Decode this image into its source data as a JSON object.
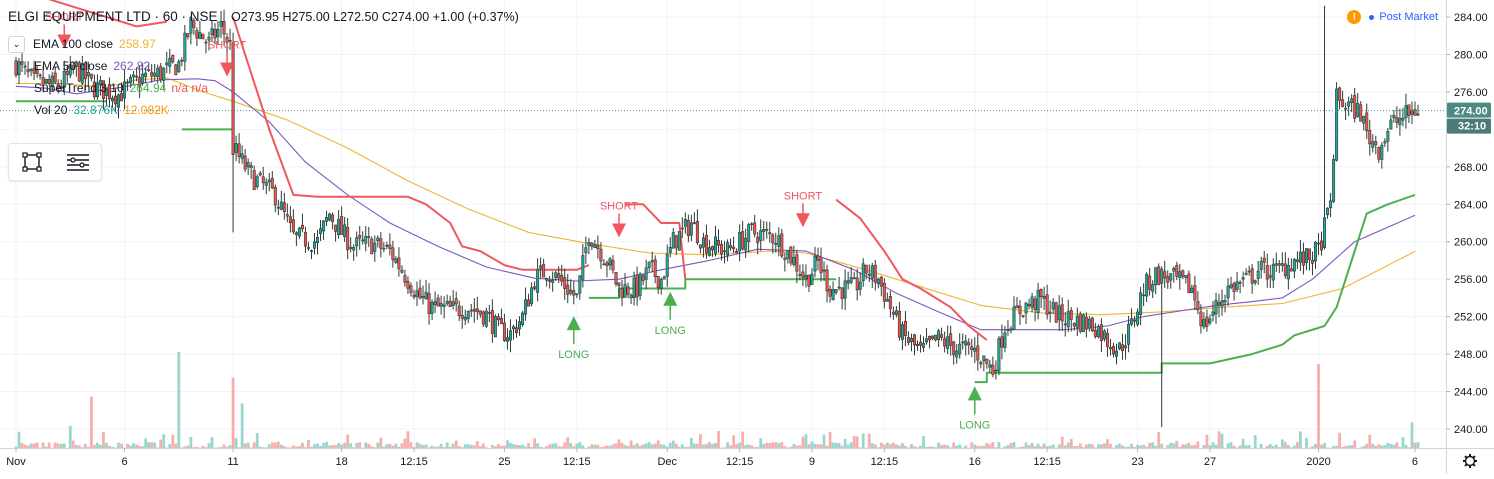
{
  "header": {
    "symbol": "ELGI EQUIPMENT LTD · 60 · NSE",
    "open": "O273.95",
    "high": "H275.00",
    "low": "L272.50",
    "close": "C274.00",
    "change": "+1.00 (+0.37%)"
  },
  "legend": [
    {
      "name": "EMA 100 close",
      "value": "258.97",
      "value2": "",
      "color": "#f0b430",
      "color2": ""
    },
    {
      "name": "EMA 50 close",
      "value": "262.82",
      "value2": "",
      "color": "#7e57c2",
      "color2": ""
    },
    {
      "name": "SuperTrend 3 10",
      "value": "264.94",
      "value2": "n/a n/a",
      "color": "#4caf50",
      "color2": "#ef5350"
    },
    {
      "name": "Vol 20",
      "value": "32.876K",
      "value2": "12.082K",
      "color": "#26a69a",
      "color2": "#ff9800"
    }
  ],
  "status": {
    "icon": "exclamation-icon",
    "text": "Post Market"
  },
  "tools": [
    "rectangle-select-icon",
    "list-lines-icon"
  ],
  "settings_icon": "gear-icon",
  "colors": {
    "up": "#26a69a",
    "down": "#ef5350",
    "body": "#2e3b34",
    "ema100": "#f0b430",
    "ema50": "#7e57c2",
    "st_up": "#4caf50",
    "st_down": "#f0585f",
    "price_line": "#4a8a8a",
    "price_tag": "#4d8a83",
    "timer_tag": "#4a7a7a"
  },
  "chart_data": {
    "type": "candlestick",
    "interval": "60",
    "ylim": [
      238.5,
      285.5
    ],
    "y_ticks": [
      240,
      244,
      248,
      252,
      256,
      260,
      264,
      268,
      272,
      276,
      280,
      284
    ],
    "y_tick_labels": [
      "240.00",
      "244.00",
      "248.00",
      "252.00",
      "256.00",
      "260.00",
      "264.00",
      "268.00",
      "272.00",
      "276.00",
      "280.00",
      "284.00"
    ],
    "x_tick_labels": [
      "Nov",
      "6",
      "11",
      "18",
      "12:15",
      "25",
      "12:15",
      "Dec",
      "12:15",
      "9",
      "12:15",
      "16",
      "12:15",
      "23",
      "27",
      "2020",
      "6"
    ],
    "x_tick_index": [
      0,
      36,
      72,
      108,
      132,
      162,
      186,
      216,
      240,
      264,
      288,
      318,
      342,
      372,
      396,
      432,
      464
    ],
    "last_price": "274.00",
    "countdown": "32:10",
    "price_path": [
      [
        0,
        279
      ],
      [
        6,
        277
      ],
      [
        14,
        276.6
      ],
      [
        20,
        278.5
      ],
      [
        26,
        276.5
      ],
      [
        34,
        275.7
      ],
      [
        42,
        277.6
      ],
      [
        48,
        278
      ],
      [
        54,
        279
      ],
      [
        58,
        283.2
      ],
      [
        64,
        281.2
      ],
      [
        68,
        283
      ],
      [
        71,
        281
      ],
      [
        72,
        270
      ],
      [
        78,
        267
      ],
      [
        86,
        265
      ],
      [
        92,
        260.5
      ],
      [
        100,
        260
      ],
      [
        104,
        263
      ],
      [
        108,
        261
      ],
      [
        112,
        259.5
      ],
      [
        118,
        259.8
      ],
      [
        124,
        259
      ],
      [
        128,
        257
      ],
      [
        134,
        254
      ],
      [
        138,
        253
      ],
      [
        145,
        252.7
      ],
      [
        150,
        253
      ],
      [
        156,
        252.2
      ],
      [
        160,
        250.5
      ],
      [
        164,
        250.2
      ],
      [
        168,
        252
      ],
      [
        172,
        256
      ],
      [
        176,
        257
      ],
      [
        180,
        256
      ],
      [
        186,
        254
      ],
      [
        190,
        261
      ],
      [
        196,
        258
      ],
      [
        200,
        255
      ],
      [
        206,
        255
      ],
      [
        210,
        257
      ],
      [
        214,
        256
      ],
      [
        218,
        260
      ],
      [
        224,
        262
      ],
      [
        228,
        260
      ],
      [
        236,
        259
      ],
      [
        244,
        261
      ],
      [
        252,
        260.5
      ],
      [
        258,
        258
      ],
      [
        262,
        256
      ],
      [
        266,
        257.8
      ],
      [
        270,
        255
      ],
      [
        278,
        255
      ],
      [
        282,
        257
      ],
      [
        286,
        256
      ],
      [
        290,
        253
      ],
      [
        294,
        250
      ],
      [
        300,
        248.2
      ],
      [
        306,
        249.6
      ],
      [
        312,
        248.6
      ],
      [
        318,
        248.4
      ],
      [
        324,
        246.3
      ],
      [
        328,
        251
      ],
      [
        334,
        253
      ],
      [
        340,
        253.8
      ],
      [
        346,
        252
      ],
      [
        352,
        251.6
      ],
      [
        358,
        251
      ],
      [
        362,
        249.5
      ],
      [
        366,
        248.5
      ],
      [
        370,
        251
      ],
      [
        374,
        255
      ],
      [
        378,
        256.5
      ],
      [
        384,
        256
      ],
      [
        390,
        255
      ],
      [
        394,
        251
      ],
      [
        398,
        253
      ],
      [
        402,
        255
      ],
      [
        408,
        255.8
      ],
      [
        412,
        257
      ],
      [
        418,
        256.8
      ],
      [
        424,
        258
      ],
      [
        428,
        258.1
      ],
      [
        432,
        259
      ],
      [
        436,
        264
      ],
      [
        438,
        275.2
      ],
      [
        442,
        274.5
      ],
      [
        446,
        273.8
      ],
      [
        448,
        271.5
      ],
      [
        452,
        270
      ],
      [
        456,
        272.5
      ],
      [
        460,
        273.3
      ],
      [
        464,
        274
      ]
    ],
    "volume_series": {
      "name": "Vol 20",
      "ylim": [
        0,
        140000
      ],
      "big_spikes": [
        [
          54,
          112000
        ],
        [
          72,
          82000
        ],
        [
          18,
          26000
        ],
        [
          25,
          60000
        ],
        [
          75,
          52000
        ],
        [
          432,
          98000
        ],
        [
          463,
          30000
        ]
      ]
    },
    "series": [
      {
        "name": "EMA 100 close",
        "kind": "line",
        "points": [
          [
            0,
            276.9
          ],
          [
            15,
            276.9
          ],
          [
            30,
            276.5
          ],
          [
            40,
            277.3
          ],
          [
            50,
            277.5
          ],
          [
            62,
            276
          ],
          [
            72,
            275
          ],
          [
            90,
            273
          ],
          [
            110,
            270
          ],
          [
            130,
            266.5
          ],
          [
            150,
            263.5
          ],
          [
            170,
            261
          ],
          [
            190,
            259.8
          ],
          [
            210,
            258.8
          ],
          [
            230,
            258.6
          ],
          [
            250,
            259
          ],
          [
            262,
            258.8
          ],
          [
            282,
            257
          ],
          [
            300,
            255.2
          ],
          [
            320,
            253.2
          ],
          [
            340,
            252.4
          ],
          [
            360,
            252.2
          ],
          [
            380,
            252.5
          ],
          [
            400,
            253
          ],
          [
            420,
            253.4
          ],
          [
            440,
            255
          ],
          [
            464,
            258.97
          ]
        ]
      },
      {
        "name": "EMA 50 close",
        "kind": "line",
        "points": [
          [
            0,
            276.6
          ],
          [
            10,
            276.4
          ],
          [
            20,
            275.8
          ],
          [
            35,
            276.5
          ],
          [
            48,
            277.3
          ],
          [
            60,
            277.4
          ],
          [
            66,
            277.2
          ],
          [
            72,
            276
          ],
          [
            84,
            272.8
          ],
          [
            96,
            268.5
          ],
          [
            110,
            265
          ],
          [
            124,
            262
          ],
          [
            140,
            259.5
          ],
          [
            156,
            257.3
          ],
          [
            172,
            256.1
          ],
          [
            186,
            255.8
          ],
          [
            200,
            256
          ],
          [
            214,
            257
          ],
          [
            230,
            258
          ],
          [
            246,
            259.2
          ],
          [
            262,
            259
          ],
          [
            278,
            257
          ],
          [
            292,
            254.5
          ],
          [
            306,
            252.5
          ],
          [
            320,
            250.6
          ],
          [
            334,
            250.6
          ],
          [
            348,
            250.6
          ],
          [
            362,
            251
          ],
          [
            374,
            252
          ],
          [
            386,
            252.6
          ],
          [
            398,
            253.2
          ],
          [
            410,
            253.6
          ],
          [
            420,
            254
          ],
          [
            430,
            256
          ],
          [
            444,
            260
          ],
          [
            464,
            262.82
          ]
        ]
      },
      {
        "name": "SuperTrend up",
        "kind": "step",
        "color": "st_up",
        "segments": [
          [
            [
              0,
              275
            ],
            [
              30,
              275
            ]
          ],
          [
            [
              55,
              272
            ],
            [
              72,
              272
            ]
          ],
          [
            [
              190,
              254
            ],
            [
              200,
              254
            ],
            [
              200,
              255
            ],
            [
              214,
              255
            ],
            [
              222,
              255
            ],
            [
              222,
              256
            ],
            [
              272,
              256
            ]
          ],
          [
            [
              318,
              245
            ],
            [
              322,
              245
            ],
            [
              322,
              246
            ],
            [
              380,
              246
            ],
            [
              380,
              247
            ],
            [
              396,
              247
            ],
            [
              410,
              248
            ],
            [
              420,
              249
            ],
            [
              424,
              250
            ],
            [
              434,
              251
            ],
            [
              438,
              253
            ],
            [
              448,
              263
            ],
            [
              455,
              264
            ],
            [
              464,
              265
            ]
          ]
        ]
      },
      {
        "name": "SuperTrend down",
        "kind": "line",
        "color": "st_down",
        "segments": [
          [
            [
              0,
              287
            ],
            [
              20,
              285
            ],
            [
              40,
              283
            ],
            [
              50,
              283.5
            ]
          ],
          [
            [
              72,
              284
            ],
            [
              76,
              280
            ],
            [
              84,
              272
            ],
            [
              92,
              265
            ],
            [
              100,
              264.8
            ],
            [
              130,
              264.8
            ],
            [
              136,
              264
            ],
            [
              144,
              262
            ],
            [
              148,
              259.5
            ],
            [
              154,
              259
            ],
            [
              162,
              257.5
            ],
            [
              168,
              257
            ],
            [
              176,
              257
            ],
            [
              186,
              257
            ],
            [
              190,
              257.5
            ]
          ],
          [
            [
              202,
              264
            ],
            [
              208,
              264
            ],
            [
              214,
              262
            ],
            [
              220,
              262
            ],
            [
              222,
              256
            ]
          ],
          [
            [
              272,
              264.5
            ],
            [
              280,
              262.5
            ],
            [
              288,
              259
            ],
            [
              294,
              256
            ],
            [
              300,
              255
            ],
            [
              310,
              253
            ],
            [
              316,
              251
            ],
            [
              320,
              250
            ],
            [
              322,
              249.5
            ]
          ]
        ]
      },
      {
        "name": "Vol 20",
        "kind": "line",
        "values_shown": [
          "32.876K",
          "12.082K"
        ]
      }
    ],
    "annotations": [
      {
        "text": "SHORT",
        "x": 16,
        "y": 281.5,
        "dir": "down"
      },
      {
        "text": "SHORT",
        "x": 70,
        "y": 278.5,
        "dir": "down"
      },
      {
        "text": "SHORT",
        "x": 200,
        "y": 261.3,
        "dir": "down"
      },
      {
        "text": "SHORT",
        "x": 261,
        "y": 262.4,
        "dir": "down"
      },
      {
        "text": "LONG",
        "x": 185,
        "y": 251.2,
        "dir": "up"
      },
      {
        "text": "LONG",
        "x": 217,
        "y": 253.8,
        "dir": "up"
      },
      {
        "text": "LONG",
        "x": 318,
        "y": 243.7,
        "dir": "up"
      }
    ]
  }
}
